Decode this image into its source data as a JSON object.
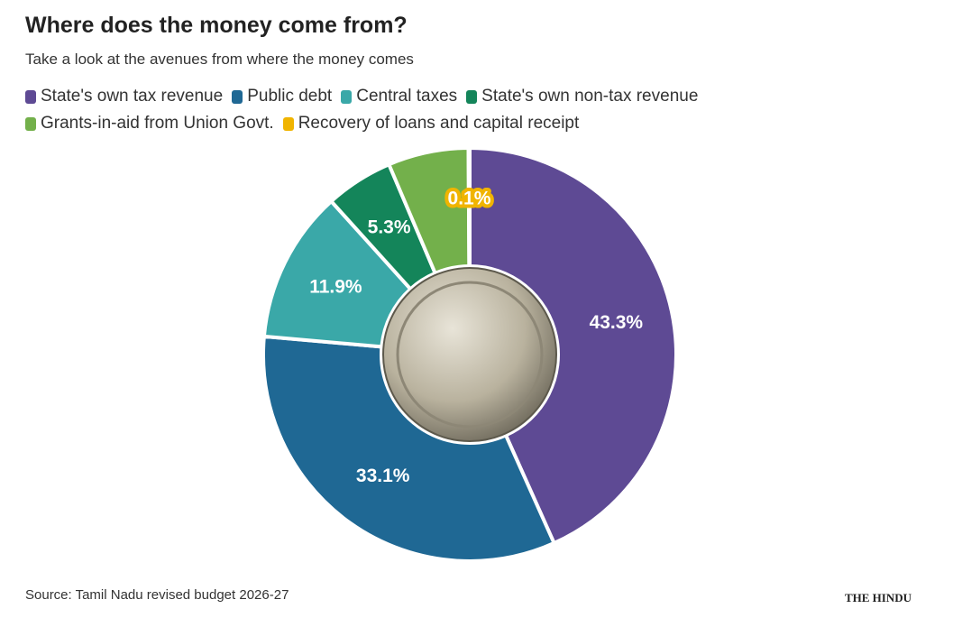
{
  "chart_data": {
    "type": "donut",
    "title": "Where does the money come from?",
    "subtitle": "Take a look at the avenues from where the money comes",
    "categories": [
      "State's own tax revenue",
      "Public debt",
      "Central taxes",
      "State's own non-tax revenue",
      "Grants-in-aid from Union Govt.",
      "Recovery of loans and capital receipt"
    ],
    "values": [
      43.3,
      33.1,
      11.9,
      5.3,
      6.3,
      0.1
    ],
    "value_labels": [
      "43.3%",
      "33.1%",
      "11.9%",
      "5.3%",
      null,
      "0.1%"
    ],
    "colors": [
      "#5e4a94",
      "#1f6894",
      "#3aa8a8",
      "#14855a",
      "#73b04b",
      "#f0b400"
    ],
    "source": "Source: Tamil Nadu revised budget 2026-27",
    "logo": "THE HINDU"
  }
}
